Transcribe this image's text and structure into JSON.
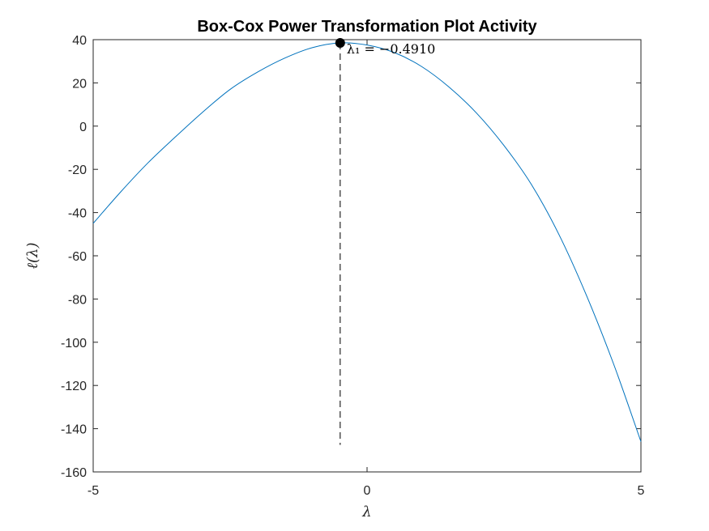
{
  "chart_data": {
    "type": "line",
    "title": "Box-Cox Power Transformation Plot Activity",
    "xlabel": "λ",
    "ylabel": "ℓ(λ)",
    "xlim": [
      -5,
      5
    ],
    "ylim": [
      -160,
      40
    ],
    "x_ticks": [
      -5,
      0,
      5
    ],
    "x_tick_labels": [
      "-5",
      "0",
      "5"
    ],
    "y_ticks": [
      -160,
      -140,
      -120,
      -100,
      -80,
      -60,
      -40,
      -20,
      0,
      20,
      40
    ],
    "y_tick_labels": [
      "-160",
      "-140",
      "-120",
      "-100",
      "-80",
      "-60",
      "-40",
      "-20",
      "0",
      "20",
      "40"
    ],
    "grid": false,
    "line_color": "#0072BD",
    "series": [
      {
        "x": [
          -5,
          -4.5,
          -4,
          -3.5,
          -3,
          -2.5,
          -2,
          -1.5,
          -1,
          -0.491,
          0,
          0.5,
          1,
          1.5,
          2,
          2.5,
          3,
          3.5,
          4,
          4.5,
          5
        ],
        "y": [
          -45,
          -30.5,
          -17,
          -5,
          6.5,
          17,
          25,
          31.5,
          36.3,
          38.5,
          37.5,
          34,
          27.5,
          18,
          6,
          -9,
          -27,
          -50,
          -78,
          -110,
          -146
        ]
      }
    ],
    "optimum": {
      "x": -0.491,
      "y": 38.5,
      "drop_to_y": -147.5
    },
    "annotation": "λ₁ = −0.4910"
  }
}
